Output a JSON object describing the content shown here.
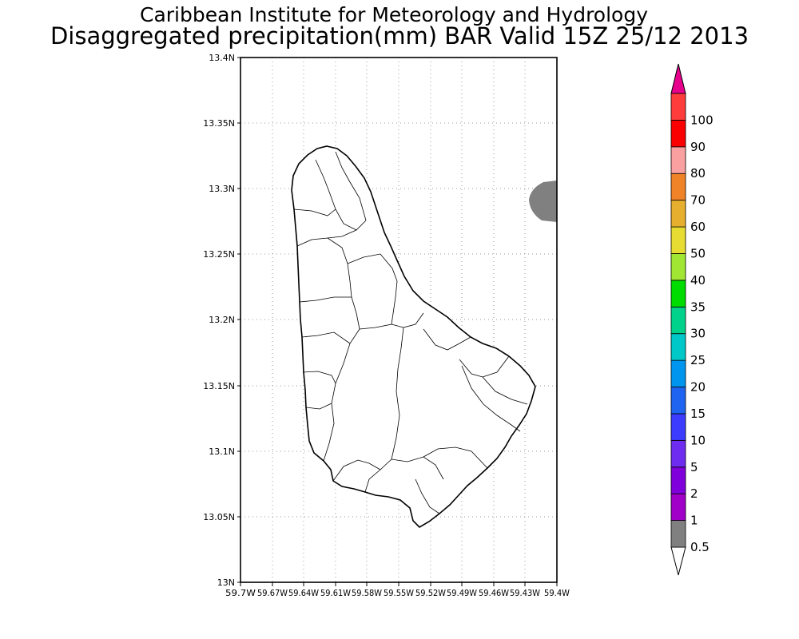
{
  "title": {
    "line1": "Caribbean Institute for Meteorology and Hydrology",
    "line2": "Disaggregated precipitation(mm) BAR Valid 15Z 25/12 2013"
  },
  "axes": {
    "y_ticks": [
      "13N",
      "13.05N",
      "13.1N",
      "13.15N",
      "13.2N",
      "13.25N",
      "13.3N",
      "13.35N",
      "13.4N"
    ],
    "x_ticks": [
      "59.7W",
      "59.67W",
      "59.64W",
      "59.61W",
      "59.58W",
      "59.55W",
      "59.52W",
      "59.49W",
      "59.46W",
      "59.43W",
      "59.4W"
    ],
    "lat_range": [
      13.0,
      13.4
    ],
    "lon_range": [
      -59.7,
      -59.4
    ],
    "grid": "dotted"
  },
  "colorbar": {
    "levels": [
      "0.5",
      "1",
      "2",
      "5",
      "10",
      "15",
      "20",
      "25",
      "30",
      "35",
      "40",
      "50",
      "60",
      "70",
      "80",
      "90",
      "100"
    ],
    "colors": [
      "#808080",
      "#a000c8",
      "#8000dc",
      "#6e2cf0",
      "#3c3cff",
      "#1e64f0",
      "#0096f0",
      "#00c8c8",
      "#00d28c",
      "#00dc00",
      "#a0e632",
      "#e6dc32",
      "#e6af2d",
      "#f08228",
      "#faa0a0",
      "#fa0000",
      "#ff3c3c"
    ],
    "top_arrow_color": "#e6008c",
    "bottom_arrow_color": "#ffffff"
  },
  "precip_areas": [
    {
      "lon": -59.4,
      "lat": 13.29,
      "category": "0.5-1",
      "color": "#808080"
    }
  ],
  "features": {
    "island": "Barbados",
    "coastline_color": "#000000",
    "catchment_lines": "black"
  }
}
